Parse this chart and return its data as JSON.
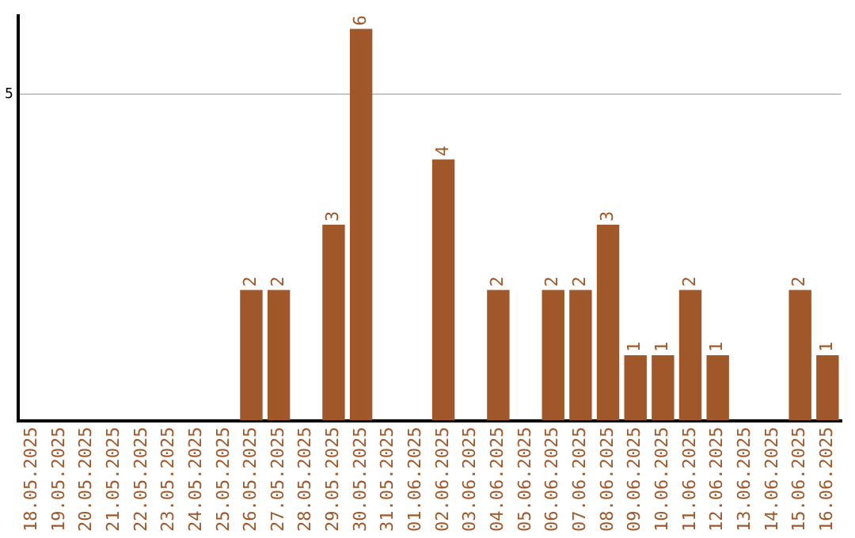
{
  "chart_data": {
    "type": "bar",
    "categories": [
      "18.05.2025",
      "19.05.2025",
      "20.05.2025",
      "21.05.2025",
      "22.05.2025",
      "23.05.2025",
      "24.05.2025",
      "25.05.2025",
      "26.05.2025",
      "27.05.2025",
      "28.05.2025",
      "29.05.2025",
      "30.05.2025",
      "31.05.2025",
      "01.06.2025",
      "02.06.2025",
      "03.06.2025",
      "04.06.2025",
      "05.06.2025",
      "06.06.2025",
      "07.06.2025",
      "08.06.2025",
      "09.06.2025",
      "10.06.2025",
      "11.06.2025",
      "12.06.2025",
      "13.06.2025",
      "14.06.2025",
      "15.06.2025",
      "16.06.2025"
    ],
    "values": [
      null,
      null,
      null,
      null,
      null,
      null,
      null,
      null,
      2,
      2,
      null,
      3,
      6,
      null,
      null,
      4,
      null,
      2,
      null,
      2,
      2,
      3,
      1,
      1,
      2,
      1,
      null,
      null,
      2,
      1
    ],
    "color": "#a0582a",
    "ylim": [
      0,
      6.2
    ],
    "yticks": [
      5
    ],
    "grid": "y",
    "legend": false,
    "data_labels": true
  }
}
